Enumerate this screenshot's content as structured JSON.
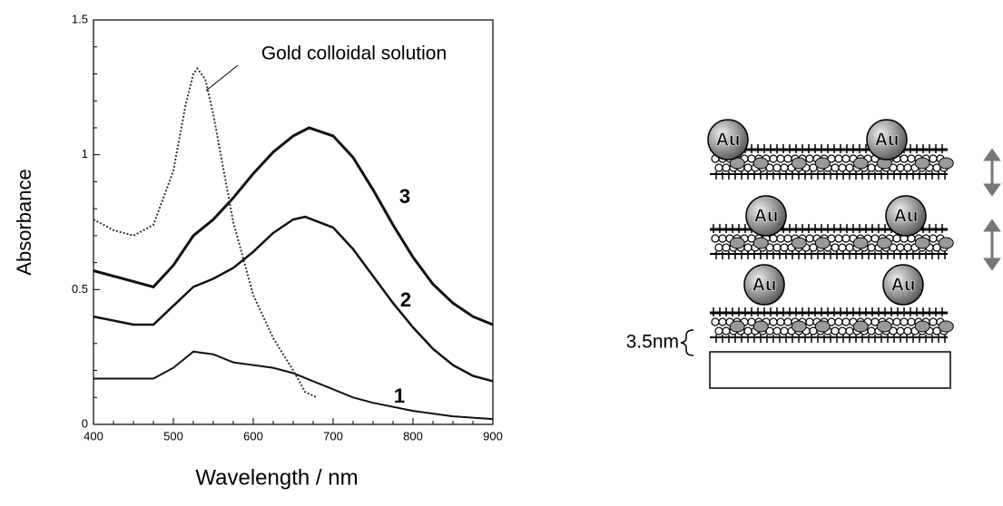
{
  "chart_data": {
    "type": "line",
    "xlabel": "Wavelength / nm",
    "ylabel": "Absorbance",
    "xlim": [
      400,
      900
    ],
    "xticks": [
      400,
      500,
      600,
      700,
      800,
      900
    ],
    "ylim": [
      0,
      1.5
    ],
    "yticks": [
      0,
      0.5,
      1,
      1.5
    ],
    "series": [
      {
        "name": "1",
        "color": "#111111",
        "x": [
          400,
          450,
          475,
          500,
          525,
          550,
          575,
          600,
          625,
          650,
          675,
          700,
          725,
          750,
          800,
          850,
          900
        ],
        "values": [
          0.17,
          0.17,
          0.17,
          0.21,
          0.27,
          0.26,
          0.23,
          0.22,
          0.21,
          0.19,
          0.16,
          0.13,
          0.1,
          0.08,
          0.05,
          0.03,
          0.02
        ]
      },
      {
        "name": "2",
        "color": "#111111",
        "x": [
          400,
          450,
          475,
          500,
          525,
          550,
          575,
          600,
          625,
          650,
          665,
          700,
          725,
          750,
          775,
          800,
          825,
          850,
          875,
          900
        ],
        "values": [
          0.4,
          0.37,
          0.37,
          0.44,
          0.51,
          0.54,
          0.58,
          0.64,
          0.71,
          0.76,
          0.77,
          0.73,
          0.65,
          0.55,
          0.45,
          0.36,
          0.28,
          0.22,
          0.18,
          0.16
        ]
      },
      {
        "name": "3",
        "color": "#111111",
        "x": [
          400,
          450,
          475,
          500,
          525,
          550,
          575,
          600,
          625,
          650,
          670,
          700,
          725,
          750,
          775,
          800,
          825,
          850,
          875,
          900
        ],
        "values": [
          0.57,
          0.53,
          0.51,
          0.59,
          0.7,
          0.76,
          0.84,
          0.93,
          1.01,
          1.07,
          1.1,
          1.07,
          0.99,
          0.87,
          0.74,
          0.62,
          0.52,
          0.45,
          0.4,
          0.37
        ]
      },
      {
        "name": "Gold  colloidal solution",
        "color": "#333333",
        "dashed": true,
        "x": [
          400,
          425,
          450,
          475,
          500,
          515,
          525,
          530,
          540,
          550,
          575,
          600,
          625,
          650,
          665,
          680
        ],
        "values": [
          0.76,
          0.72,
          0.7,
          0.74,
          0.94,
          1.18,
          1.3,
          1.32,
          1.28,
          1.15,
          0.75,
          0.48,
          0.32,
          0.2,
          0.12,
          0.1
        ]
      }
    ]
  },
  "diagram": {
    "particles": [
      "Au",
      "Au",
      "Au",
      "Au",
      "Au",
      "Au"
    ],
    "thickness_label": "3.5nm"
  }
}
